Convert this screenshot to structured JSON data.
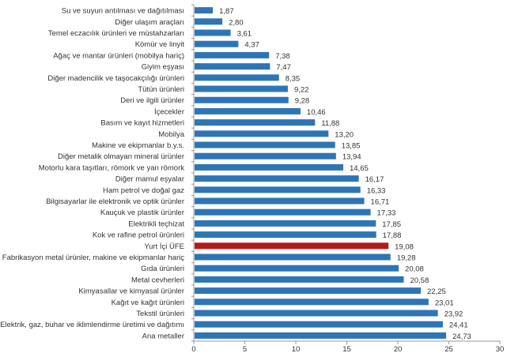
{
  "chart_data": {
    "type": "bar",
    "orientation": "horizontal",
    "categories": [
      "Su ve suyun antılması ve dağıtılması",
      "Diğer ulaşım araçları",
      "Temel eczacılık ürünleri ve müstahzarları",
      "Kömür ve linyit",
      "Ağaç ve mantar ürünleri (mobilya hariç)",
      "Giyim eşyası",
      "Diğer madencilik ve taşocakçılığı ürünleri",
      "Tütün ürünleri",
      "Deri ve ilgili ürünler",
      "İçecekler",
      "Basım ve kayıt hizmetleri",
      "Mobilya",
      "Makine ve ekipmanlar b.y.s.",
      "Diğer metalik olmayan mineral ürünler",
      "Motorlu kara taşıtları, römork ve yan römork",
      "Diğer mamul eşyalar",
      "Ham petrol ve doğal gaz",
      "Bilgisayarlar ile elektronik ve optik ürünler",
      "Kauçuk ve plastik ürünler",
      "Elektrikli teçhizat",
      "Kok ve rafine petrol ürünleri",
      "Yurt İçi ÜFE",
      "Fabrikasyon metal ürünler, makine ve ekipmanlar hariç",
      "Gıda ürünleri",
      "Metal cevherleri",
      "Kimyasallar ve kimyasal ürünler",
      "Kağıt ve kağıt ürünleri",
      "Tekstil ürünleri",
      "Elektrik, gaz, buhar ve iklimlendirme üretimi ve dağıtımı",
      "Ana metaller"
    ],
    "values": [
      1.87,
      2.8,
      3.61,
      4.37,
      7.38,
      7.47,
      8.35,
      9.22,
      9.28,
      10.46,
      11.88,
      13.2,
      13.85,
      13.94,
      14.65,
      16.17,
      16.33,
      16.71,
      17.33,
      17.85,
      17.88,
      19.08,
      19.28,
      20.08,
      20.58,
      22.25,
      23.01,
      23.92,
      24.41,
      24.73
    ],
    "value_labels": [
      "1,87",
      "2,80",
      "3,61",
      "4,37",
      "7,38",
      "7,47",
      "8,35",
      "9,22",
      "9,28",
      "10,46",
      "11,88",
      "13,20",
      "13,85",
      "13,94",
      "14,65",
      "16,17",
      "16,33",
      "16,71",
      "17,33",
      "17,85",
      "17,88",
      "19,08",
      "19,28",
      "20,08",
      "20,58",
      "22,25",
      "23,01",
      "23,92",
      "24,41",
      "24,73"
    ],
    "highlight_category": "Yurt İçi ÜFE",
    "xlim": [
      0,
      30
    ],
    "xticks": [
      "0",
      "5",
      "10",
      "15",
      "20",
      "25",
      "30"
    ],
    "grid": false,
    "colors": {
      "bar": "#2e75b6",
      "highlight": "#b31b1b"
    }
  }
}
